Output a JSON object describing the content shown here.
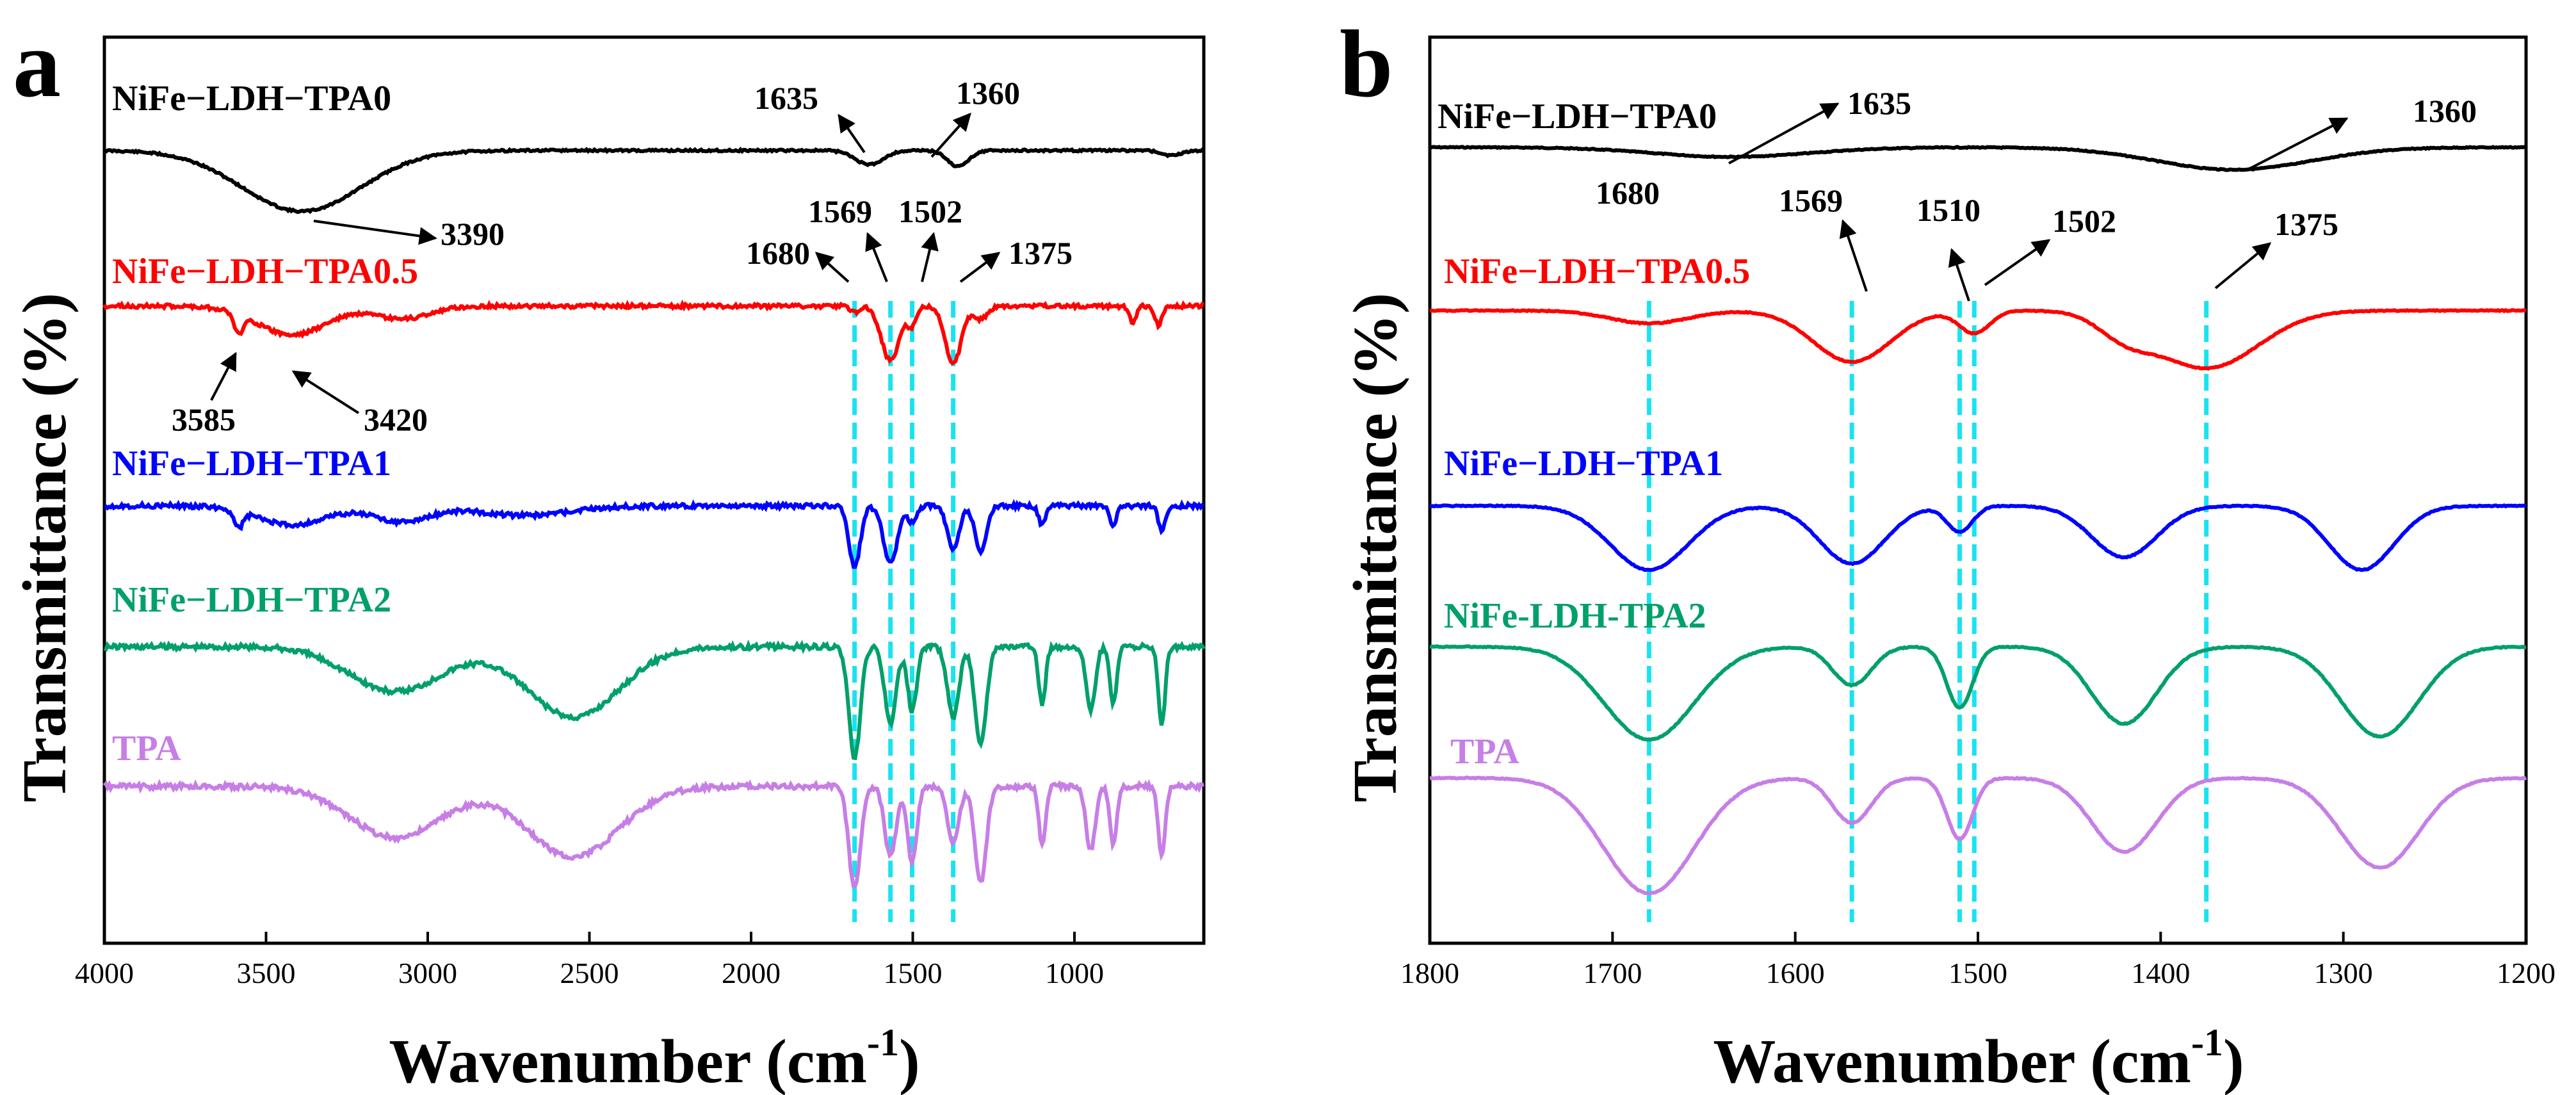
{
  "chart_data": [
    {
      "type": "line",
      "panel_label": "a",
      "xlabel": "Wavenumber (cm",
      "xlabel_sup": "-1",
      "xlabel_close": ")",
      "ylabel": "Transmittance (%)",
      "xlim": [
        4000,
        600
      ],
      "x_reversed": true,
      "xticks": [
        4000,
        3500,
        3000,
        2500,
        2000,
        1500,
        1000
      ],
      "y_ticks_shown": false,
      "grid": false,
      "legend": "inline labels above each trace",
      "series": [
        {
          "name": "NiFe−LDH−TPA0",
          "color": "#000000",
          "features": [
            3390,
            1635,
            1360
          ]
        },
        {
          "name": "NiFe−LDH−TPA0.5",
          "color": "#ff0000",
          "features": [
            3585,
            3420,
            1680,
            1569,
            1502,
            1375
          ]
        },
        {
          "name": "NiFe−LDH−TPA1",
          "color": "#0000ff",
          "features": [
            1680,
            1569,
            1502,
            1375
          ]
        },
        {
          "name": "NiFe−LDH−TPA2",
          "color": "#00a06a",
          "features": [
            1680,
            1569,
            1502,
            1375
          ]
        },
        {
          "name": "TPA",
          "color": "#c77ee6",
          "features": [
            1680,
            1569,
            1502,
            1375
          ]
        }
      ],
      "annotations": [
        "1635",
        "1360",
        "3390",
        "1680",
        "1569",
        "1502",
        "1375",
        "3585",
        "3420"
      ],
      "reference_lines": [
        1680,
        1569,
        1502,
        1375
      ]
    },
    {
      "type": "line",
      "panel_label": "b",
      "xlabel": "Wavenumber (cm",
      "xlabel_sup": "-1",
      "xlabel_close": ")",
      "ylabel": "Transmittance (%)",
      "xlim": [
        1800,
        1200
      ],
      "x_reversed": true,
      "xticks": [
        1800,
        1700,
        1600,
        1500,
        1400,
        1300,
        1200
      ],
      "y_ticks_shown": false,
      "grid": false,
      "legend": "inline labels above each trace",
      "series": [
        {
          "name": "NiFe−LDH−TPA0",
          "color": "#000000",
          "features": [
            1635,
            1360
          ]
        },
        {
          "name": "NiFe−LDH−TPA0.5",
          "color": "#ff0000",
          "features": [
            1680,
            1569,
            1510,
            1502,
            1375
          ]
        },
        {
          "name": "NiFe−LDH−TPA1",
          "color": "#0000ff",
          "features": [
            1680,
            1569,
            1510,
            1502,
            1375
          ]
        },
        {
          "name": "NiFe-LDH-TPA2",
          "color": "#00a06a",
          "features": [
            1680,
            1569,
            1510,
            1502,
            1375
          ]
        },
        {
          "name": "TPA",
          "color": "#c77ee6",
          "features": [
            1680,
            1569,
            1510,
            1502,
            1375
          ]
        }
      ],
      "annotations": [
        "1635",
        "1360",
        "1680",
        "1569",
        "1510",
        "1502",
        "1375"
      ],
      "reference_lines": [
        1680,
        1569,
        1510,
        1502,
        1375
      ]
    }
  ],
  "guide_color": "#19e3f0"
}
